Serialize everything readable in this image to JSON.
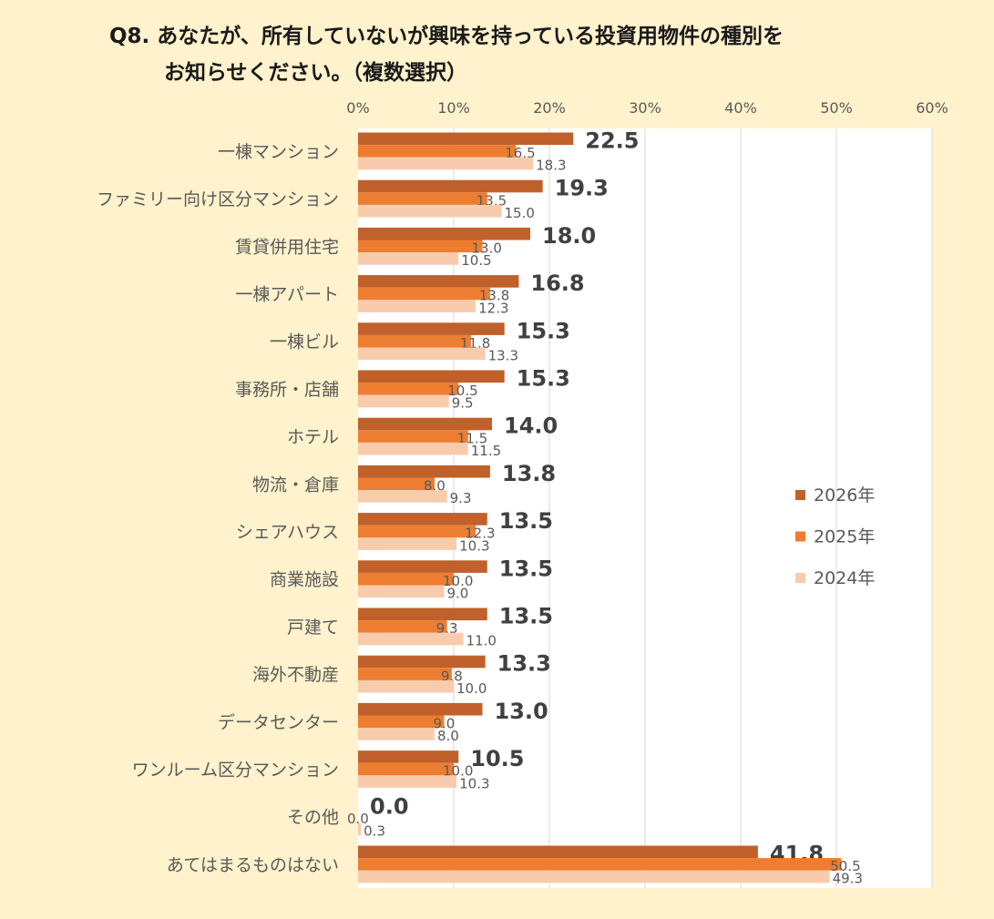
{
  "title": {
    "line1": "Q8. あなたが、所有していないが興味を持っている投資用物件の種別を",
    "line2": "お知らせください。（複数選択）"
  },
  "colors": {
    "background": "#fff2cc",
    "plot_background": "#ffffff",
    "s2026": "#c0602a",
    "s2025": "#ed7d31",
    "s2024": "#f8cbad",
    "grid": "#d9d9d9",
    "axis_text": "#595959"
  },
  "chart_data": {
    "type": "bar",
    "orientation": "horizontal",
    "categories": [
      "一棟マンション",
      "ファミリー向け区分マンション",
      "賃貸併用住宅",
      "一棟アパート",
      "一棟ビル",
      "事務所・店舗",
      "ホテル",
      "物流・倉庫",
      "シェアハウス",
      "商業施設",
      "戸建て",
      "海外不動産",
      "データセンター",
      "ワンルーム区分マンション",
      "その他",
      "あてはまるものはない"
    ],
    "series": [
      {
        "name": "2026年",
        "color": "#c0602a",
        "values": [
          22.5,
          19.3,
          18.0,
          16.8,
          15.3,
          15.3,
          14.0,
          13.8,
          13.5,
          13.5,
          13.5,
          13.3,
          13.0,
          10.5,
          0.0,
          41.8
        ]
      },
      {
        "name": "2025年",
        "color": "#ed7d31",
        "values": [
          16.5,
          13.5,
          13.0,
          13.8,
          11.8,
          10.5,
          11.5,
          8.0,
          12.3,
          10.0,
          9.3,
          9.8,
          9.0,
          10.0,
          0.0,
          50.5
        ]
      },
      {
        "name": "2024年",
        "color": "#f8cbad",
        "values": [
          18.3,
          15.0,
          10.5,
          12.3,
          13.3,
          9.5,
          11.5,
          9.3,
          10.3,
          9.0,
          11.0,
          10.0,
          8.0,
          10.3,
          0.3,
          49.3
        ]
      }
    ],
    "x_ticks": [
      "0%",
      "10%",
      "20%",
      "30%",
      "40%",
      "50%",
      "60%"
    ],
    "xlim": [
      0,
      60
    ],
    "grid": true,
    "legend_position": "right"
  }
}
